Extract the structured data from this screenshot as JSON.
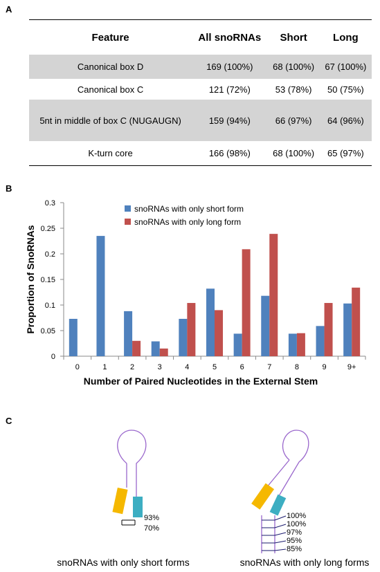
{
  "panel_a": {
    "label": "A",
    "table": {
      "header": [
        "Feature",
        "All snoRNAs",
        "Short",
        "Long"
      ],
      "rows": [
        [
          "Canonical box D",
          "169 (100%)",
          "68 (100%)",
          "67 (100%)"
        ],
        [
          "Canonical box C",
          "121 (72%)",
          "53 (78%)",
          "50 (75%)"
        ],
        [
          "5nt in middle of box C (NUGAUGN)",
          "159 (94%)",
          "66 (97%)",
          "64 (96%)"
        ],
        [
          "K-turn core",
          "166 (98%)",
          "68 (100%)",
          "65 (97%)"
        ]
      ]
    }
  },
  "chart_data": {
    "type": "bar",
    "panel_label": "B",
    "x_label": "Number of Paired Nucleotides in the External Stem",
    "y_label": "Proportion of SnoRNAs",
    "categories": [
      "0",
      "1",
      "2",
      "3",
      "4",
      "5",
      "6",
      "7",
      "8",
      "9",
      "9+"
    ],
    "series": [
      {
        "name": "snoRNAs with only short form",
        "color": "#4f81bd",
        "values": [
          0.073,
          0.235,
          0.088,
          0.029,
          0.073,
          0.132,
          0.044,
          0.118,
          0.044,
          0.059,
          0.103
        ]
      },
      {
        "name": "snoRNAs with only long form",
        "color": "#c0504d",
        "values": [
          0,
          0,
          0.03,
          0.015,
          0.104,
          0.09,
          0.209,
          0.239,
          0.045,
          0.104,
          0.134
        ]
      }
    ],
    "ylim": [
      0,
      0.3
    ],
    "yticks": [
      0,
      0.05,
      0.1,
      0.15,
      0.2,
      0.25,
      0.3
    ],
    "grid": false,
    "legend": "top"
  },
  "panel_c": {
    "label": "C",
    "short": {
      "caption": "snoRNAs with only short forms",
      "labels": [
        "93%",
        "70%"
      ]
    },
    "long": {
      "caption": "snoRNAs with only long forms",
      "labels": [
        "100%",
        "100%",
        "97%",
        "95%",
        "85%"
      ]
    }
  }
}
